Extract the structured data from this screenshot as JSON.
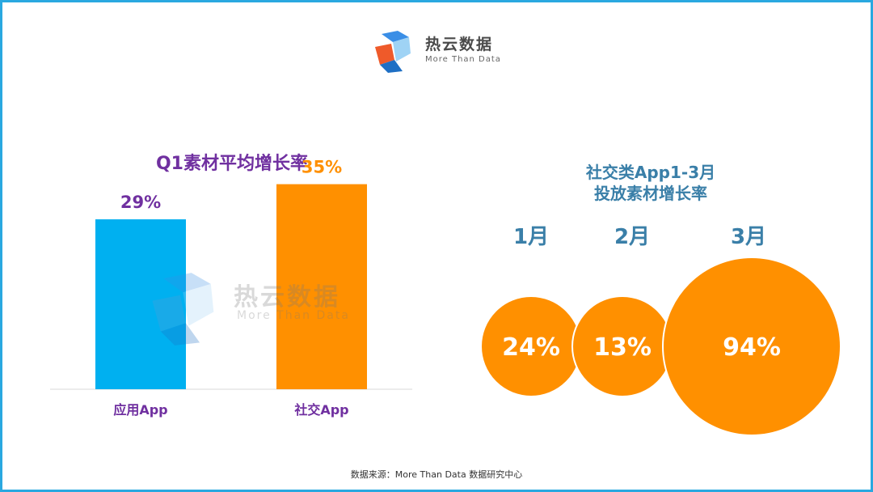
{
  "logo": {
    "name": "热云数据",
    "tagline": "More Than Data"
  },
  "watermark": {
    "name": "热云数据",
    "tagline": "More Than Data"
  },
  "chart_data": [
    {
      "type": "bar",
      "title": "Q1素材平均增长率",
      "categories": [
        "应用App",
        "社交App"
      ],
      "values": [
        29,
        35
      ],
      "value_labels": [
        "29%",
        "35%"
      ],
      "colors": [
        "#00b0f0",
        "#ff9000"
      ],
      "value_label_colors": [
        "#7030a0",
        "#ff9000"
      ],
      "ylim": [
        0,
        50
      ]
    },
    {
      "type": "bubble",
      "title_lines": [
        "社交类App1-3月",
        "投放素材增长率"
      ],
      "categories": [
        "1月",
        "2月",
        "3月"
      ],
      "values": [
        24,
        13,
        94
      ],
      "value_labels": [
        "24%",
        "13%",
        "94%"
      ],
      "color": "#ff9000"
    }
  ],
  "footer": {
    "source": "数据来源：More Than Data 数据研究中心"
  }
}
